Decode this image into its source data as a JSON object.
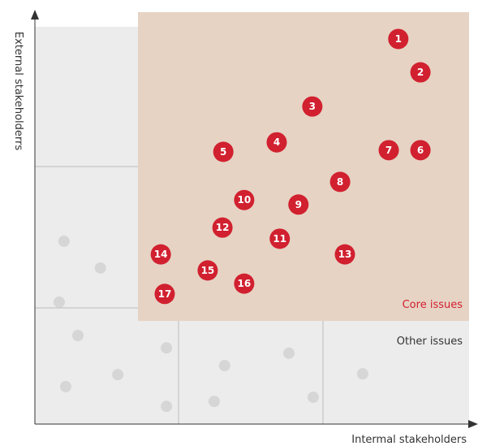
{
  "chart_data": {
    "type": "scatter",
    "xlabel": "Intermal stakeholders",
    "ylabel": "External stakeholderrs",
    "xlim": [
      0,
      100
    ],
    "ylim": [
      0,
      100
    ],
    "series": [
      {
        "name": "Core issues",
        "color": "#d1202f",
        "labels": [
          "1",
          "2",
          "3",
          "4",
          "5",
          "6",
          "7",
          "8",
          "9",
          "10",
          "11",
          "12",
          "13",
          "14",
          "15",
          "16",
          "17"
        ],
        "x": [
          83.7,
          88.8,
          63.9,
          55.7,
          43.4,
          88.8,
          81.5,
          70.3,
          60.7,
          48.2,
          56.4,
          43.2,
          71.4,
          29.0,
          39.8,
          48.2,
          29.9
        ],
        "values": [
          93.5,
          85.4,
          77.1,
          68.4,
          66.1,
          66.5,
          66.5,
          58.8,
          53.3,
          54.4,
          45.0,
          47.7,
          41.2,
          41.2,
          37.3,
          34.1,
          31.6
        ]
      },
      {
        "name": "Other issues",
        "color": "#d6d6d6",
        "x": [
          6.7,
          15.1,
          5.6,
          9.9,
          30.3,
          19.1,
          7.1,
          30.3,
          43.7,
          58.5,
          41.3,
          64.1,
          75.5
        ],
        "values": [
          44.4,
          37.9,
          29.6,
          21.5,
          18.5,
          12.0,
          9.1,
          4.3,
          14.2,
          17.2,
          5.5,
          6.5,
          12.2
        ]
      }
    ]
  }
}
